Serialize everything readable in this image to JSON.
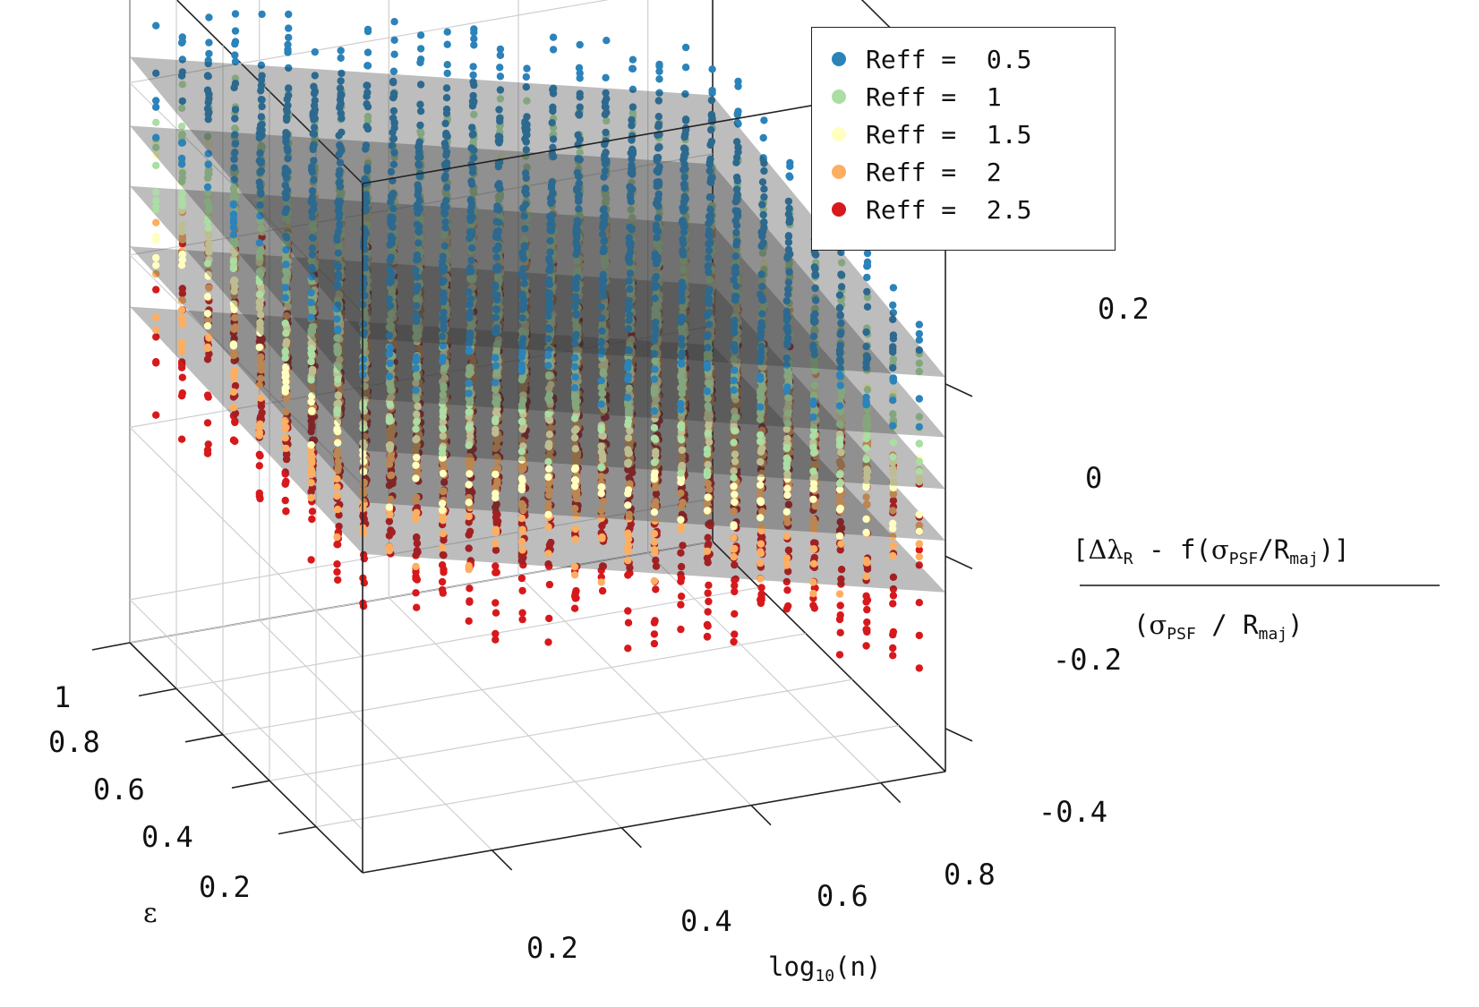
{
  "chart_data": {
    "type": "scatter3d",
    "title": "",
    "axes": {
      "x": {
        "label": "log10(n)",
        "label_base": "log",
        "label_sub": "10",
        "label_rest": "(n)",
        "range": [
          0.0,
          0.9
        ],
        "ticks": [
          "0.2",
          "0.4",
          "0.6",
          "0.8"
        ],
        "tick_values": [
          0.2,
          0.4,
          0.6,
          0.8
        ]
      },
      "y": {
        "label": "ε",
        "range": [
          0.0,
          1.0
        ],
        "ticks": [
          "0.2",
          "0.4",
          "0.6",
          "0.8",
          "1"
        ],
        "tick_values": [
          0.2,
          0.4,
          0.6,
          0.8,
          1.0
        ]
      },
      "z": {
        "label_numerator": {
          "open": "[",
          "delta": "Δλ",
          "delta_sub": "R",
          "mid": " - f(",
          "sigma": "σ",
          "sigma_sub": "PSF",
          "slash": "/R",
          "r_sub": "maj",
          "close": ")]"
        },
        "label_denominator": {
          "open": "(",
          "sigma": "σ",
          "sigma_sub": "PSF",
          "slash": " / R",
          "r_sub": "maj",
          "close": ")"
        },
        "range": [
          -0.45,
          0.35
        ],
        "ticks": [
          "0.2",
          "0",
          "-0.2",
          "-0.4"
        ],
        "tick_values": [
          0.2,
          0.0,
          -0.2,
          -0.4
        ]
      }
    },
    "legend": {
      "position": "top-right",
      "entries": [
        {
          "label": "Reff =  0.5",
          "color": "#2b83ba"
        },
        {
          "label": "Reff =  1",
          "color": "#abdda4"
        },
        {
          "label": "Reff =  1.5",
          "color": "#ffffbf"
        },
        {
          "label": "Reff =  2",
          "color": "#fdae61"
        },
        {
          "label": "Reff =  2.5",
          "color": "#d7191c"
        }
      ]
    },
    "series": [
      {
        "name": "Reff = 0.5",
        "color": "#2b83ba",
        "plane": {
          "offset": 0.17,
          "slope_logn": -0.18,
          "slope_eps": 0.06
        },
        "spread": 0.08
      },
      {
        "name": "Reff = 1",
        "color": "#abdda4",
        "plane": {
          "offset": 0.1,
          "slope_logn": -0.18,
          "slope_eps": 0.05
        },
        "spread": 0.08
      },
      {
        "name": "Reff = 1.5",
        "color": "#ffffbf",
        "plane": {
          "offset": 0.04,
          "slope_logn": -0.18,
          "slope_eps": 0.04
        },
        "spread": 0.08
      },
      {
        "name": "Reff = 2",
        "color": "#fdae61",
        "plane": {
          "offset": -0.02,
          "slope_logn": -0.18,
          "slope_eps": 0.03
        },
        "spread": 0.09
      },
      {
        "name": "Reff = 2.5",
        "color": "#d7191c",
        "plane": {
          "offset": -0.08,
          "slope_logn": -0.18,
          "slope_eps": 0.02
        },
        "spread": 0.11
      }
    ],
    "grid": true
  }
}
